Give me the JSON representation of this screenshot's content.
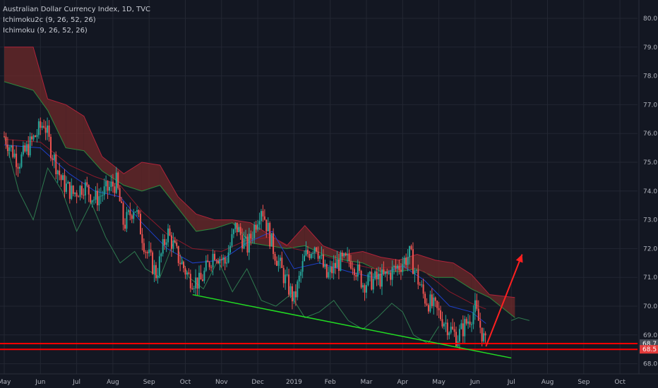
{
  "header": {
    "title": "Australian Dollar Currency Index, 1D, TVC",
    "indicator_1": "Ichimoku2c (9, 26, 52, 26)",
    "indicator_2": "Ichimoku (9, 26, 52, 26)"
  },
  "colors": {
    "background": "#131722",
    "grid": "#232733",
    "axis_text": "#b2b5be",
    "candle_up": "#26a69a",
    "candle_down": "#ef5350",
    "tenkan": "#1e40c8",
    "kijun": "#8b1a2a",
    "chikou": "#2f7a4f",
    "cloud_bear": "#6e2a2a",
    "cloud_bull": "#1f4d2a",
    "trendline": "#22dd22",
    "support": "#ff0000",
    "arrow": "#ff2020",
    "price_tag_red": "#e23b3b",
    "price_tag_dark": "#444a55"
  },
  "chart_data": {
    "type": "candlestick",
    "title": "Australian Dollar Currency Index, 1D, TVC",
    "y_ticks": [
      "80.0",
      "79.0",
      "78.0",
      "77.0",
      "76.0",
      "75.0",
      "74.0",
      "73.0",
      "72.0",
      "71.0",
      "70.0",
      "69.0",
      "68.0"
    ],
    "y_range": [
      67.6,
      80.4
    ],
    "x_ticks": [
      "May",
      "Jun",
      "Jul",
      "Aug",
      "Sep",
      "Oct",
      "Nov",
      "Dec",
      "2019",
      "Feb",
      "Mar",
      "Apr",
      "May",
      "Jun",
      "Jul",
      "Aug",
      "Sep",
      "Oct"
    ],
    "grid": true,
    "price_tags": [
      {
        "label": "68.7",
        "value": 68.7,
        "style": "dark"
      },
      {
        "label": "68.5",
        "value": 68.5,
        "style": "red"
      }
    ],
    "price_path": [
      {
        "month": 0.0,
        "price": 75.9
      },
      {
        "month": 0.4,
        "price": 75.0
      },
      {
        "month": 0.8,
        "price": 75.8
      },
      {
        "month": 1.1,
        "price": 76.4
      },
      {
        "month": 1.3,
        "price": 75.4
      },
      {
        "month": 1.6,
        "price": 74.3
      },
      {
        "month": 1.9,
        "price": 73.9
      },
      {
        "month": 2.2,
        "price": 74.2
      },
      {
        "month": 2.5,
        "price": 73.7
      },
      {
        "month": 2.8,
        "price": 74.0
      },
      {
        "month": 3.1,
        "price": 74.3
      },
      {
        "month": 3.3,
        "price": 72.8
      },
      {
        "month": 3.6,
        "price": 73.5
      },
      {
        "month": 3.9,
        "price": 72.0
      },
      {
        "month": 4.2,
        "price": 71.1
      },
      {
        "month": 4.5,
        "price": 72.6
      },
      {
        "month": 4.8,
        "price": 71.7
      },
      {
        "month": 5.1,
        "price": 71.0
      },
      {
        "month": 5.4,
        "price": 70.8
      },
      {
        "month": 5.8,
        "price": 71.9
      },
      {
        "month": 6.1,
        "price": 71.5
      },
      {
        "month": 6.4,
        "price": 72.8
      },
      {
        "month": 6.7,
        "price": 72.0
      },
      {
        "month": 7.1,
        "price": 73.5
      },
      {
        "month": 7.4,
        "price": 72.1
      },
      {
        "month": 7.7,
        "price": 71.1
      },
      {
        "month": 8.0,
        "price": 70.2
      },
      {
        "month": 8.3,
        "price": 71.7
      },
      {
        "month": 8.6,
        "price": 72.2
      },
      {
        "month": 8.9,
        "price": 71.0
      },
      {
        "month": 9.2,
        "price": 71.5
      },
      {
        "month": 9.6,
        "price": 71.6
      },
      {
        "month": 9.9,
        "price": 70.8
      },
      {
        "month": 10.2,
        "price": 70.9
      },
      {
        "month": 10.5,
        "price": 71.0
      },
      {
        "month": 10.9,
        "price": 71.4
      },
      {
        "month": 11.2,
        "price": 71.8
      },
      {
        "month": 11.4,
        "price": 71.0
      },
      {
        "month": 11.6,
        "price": 70.3
      },
      {
        "month": 11.9,
        "price": 69.9
      },
      {
        "month": 12.2,
        "price": 69.4
      },
      {
        "month": 12.5,
        "price": 68.9
      },
      {
        "month": 12.8,
        "price": 69.5
      },
      {
        "month": 13.0,
        "price": 69.9
      },
      {
        "month": 13.3,
        "price": 68.6
      }
    ],
    "tenkan": [
      {
        "month": 0.0,
        "price": 75.6
      },
      {
        "month": 1.0,
        "price": 75.5
      },
      {
        "month": 1.8,
        "price": 74.6
      },
      {
        "month": 2.5,
        "price": 74.0
      },
      {
        "month": 3.2,
        "price": 73.8
      },
      {
        "month": 3.8,
        "price": 72.9
      },
      {
        "month": 4.5,
        "price": 72.0
      },
      {
        "month": 5.2,
        "price": 71.5
      },
      {
        "month": 6.0,
        "price": 71.6
      },
      {
        "month": 6.7,
        "price": 72.2
      },
      {
        "month": 7.4,
        "price": 72.6
      },
      {
        "month": 8.0,
        "price": 71.3
      },
      {
        "month": 8.7,
        "price": 71.5
      },
      {
        "month": 9.5,
        "price": 71.2
      },
      {
        "month": 10.2,
        "price": 71.0
      },
      {
        "month": 11.0,
        "price": 71.4
      },
      {
        "month": 11.6,
        "price": 70.9
      },
      {
        "month": 12.3,
        "price": 70.0
      },
      {
        "month": 12.9,
        "price": 69.8
      },
      {
        "month": 13.3,
        "price": 69.4
      }
    ],
    "kijun": [
      {
        "month": 0.0,
        "price": 75.8
      },
      {
        "month": 1.0,
        "price": 75.7
      },
      {
        "month": 1.8,
        "price": 74.9
      },
      {
        "month": 2.5,
        "price": 74.5
      },
      {
        "month": 3.2,
        "price": 74.2
      },
      {
        "month": 3.8,
        "price": 73.3
      },
      {
        "month": 4.5,
        "price": 72.5
      },
      {
        "month": 5.2,
        "price": 72.0
      },
      {
        "month": 6.0,
        "price": 71.9
      },
      {
        "month": 6.7,
        "price": 72.3
      },
      {
        "month": 7.4,
        "price": 72.4
      },
      {
        "month": 8.0,
        "price": 72.0
      },
      {
        "month": 8.7,
        "price": 71.8
      },
      {
        "month": 9.5,
        "price": 71.5
      },
      {
        "month": 10.2,
        "price": 71.3
      },
      {
        "month": 11.0,
        "price": 71.4
      },
      {
        "month": 11.6,
        "price": 71.2
      },
      {
        "month": 12.3,
        "price": 70.5
      },
      {
        "month": 12.9,
        "price": 70.1
      },
      {
        "month": 13.3,
        "price": 69.9
      }
    ],
    "chikou": [
      {
        "month": 0.0,
        "price": 75.9
      },
      {
        "month": 0.4,
        "price": 74.0
      },
      {
        "month": 0.8,
        "price": 73.0
      },
      {
        "month": 1.2,
        "price": 74.8
      },
      {
        "month": 1.6,
        "price": 74.0
      },
      {
        "month": 2.0,
        "price": 72.6
      },
      {
        "month": 2.4,
        "price": 73.6
      },
      {
        "month": 2.8,
        "price": 72.4
      },
      {
        "month": 3.2,
        "price": 71.5
      },
      {
        "month": 3.6,
        "price": 71.9
      },
      {
        "month": 3.9,
        "price": 71.3
      },
      {
        "month": 4.3,
        "price": 71.0
      },
      {
        "month": 4.7,
        "price": 72.3
      },
      {
        "month": 5.1,
        "price": 71.0
      },
      {
        "month": 5.5,
        "price": 70.6
      },
      {
        "month": 5.9,
        "price": 71.6
      },
      {
        "month": 6.3,
        "price": 70.5
      },
      {
        "month": 6.7,
        "price": 71.3
      },
      {
        "month": 7.1,
        "price": 70.2
      },
      {
        "month": 7.5,
        "price": 70.0
      },
      {
        "month": 7.9,
        "price": 70.4
      },
      {
        "month": 8.3,
        "price": 69.6
      },
      {
        "month": 8.7,
        "price": 69.8
      },
      {
        "month": 9.1,
        "price": 70.2
      },
      {
        "month": 9.5,
        "price": 69.5
      },
      {
        "month": 9.9,
        "price": 69.2
      },
      {
        "month": 10.3,
        "price": 69.6
      },
      {
        "month": 10.7,
        "price": 70.1
      },
      {
        "month": 11.0,
        "price": 69.8
      },
      {
        "month": 11.3,
        "price": 69.0
      },
      {
        "month": 11.7,
        "price": 68.7
      },
      {
        "month": 12.0,
        "price": 69.3
      }
    ],
    "cloud": [
      {
        "month": 0.0,
        "a": 79.0,
        "b": 77.8
      },
      {
        "month": 0.8,
        "a": 79.0,
        "b": 77.5
      },
      {
        "month": 1.2,
        "a": 77.2,
        "b": 76.8
      },
      {
        "month": 1.7,
        "a": 77.0,
        "b": 75.5
      },
      {
        "month": 2.2,
        "a": 76.6,
        "b": 75.4
      },
      {
        "month": 2.7,
        "a": 75.2,
        "b": 74.7
      },
      {
        "month": 3.3,
        "a": 74.6,
        "b": 74.2
      },
      {
        "month": 3.8,
        "a": 75.0,
        "b": 74.0
      },
      {
        "month": 4.3,
        "a": 74.9,
        "b": 74.2
      },
      {
        "month": 4.8,
        "a": 73.8,
        "b": 73.4
      },
      {
        "month": 5.3,
        "a": 73.2,
        "b": 72.6
      },
      {
        "month": 5.8,
        "a": 73.0,
        "b": 72.7
      },
      {
        "month": 6.3,
        "a": 73.0,
        "b": 72.9
      },
      {
        "month": 6.8,
        "a": 72.9,
        "b": 72.2
      },
      {
        "month": 7.3,
        "a": 72.5,
        "b": 72.1
      },
      {
        "month": 7.8,
        "a": 72.1,
        "b": 72.0
      },
      {
        "month": 8.3,
        "a": 72.8,
        "b": 72.1
      },
      {
        "month": 8.8,
        "a": 72.1,
        "b": 71.8
      },
      {
        "month": 9.4,
        "a": 71.8,
        "b": 71.6
      },
      {
        "month": 9.9,
        "a": 71.9,
        "b": 71.5
      },
      {
        "month": 10.4,
        "a": 71.7,
        "b": 71.2
      },
      {
        "month": 10.9,
        "a": 71.6,
        "b": 71.2
      },
      {
        "month": 11.4,
        "a": 71.8,
        "b": 71.3
      },
      {
        "month": 11.9,
        "a": 71.6,
        "b": 71.0
      },
      {
        "month": 12.4,
        "a": 71.5,
        "b": 71.0
      },
      {
        "month": 12.9,
        "a": 71.1,
        "b": 70.6
      },
      {
        "month": 13.4,
        "a": 70.4,
        "b": 70.3
      },
      {
        "month": 14.1,
        "a": 70.3,
        "b": 69.6
      }
    ],
    "lagging_tail": [
      {
        "month": 14.0,
        "price": 69.5
      },
      {
        "month": 14.2,
        "price": 69.6
      },
      {
        "month": 14.5,
        "price": 69.5
      }
    ],
    "trendline": [
      {
        "month": 5.2,
        "price": 70.4
      },
      {
        "month": 14.0,
        "price": 68.2
      }
    ],
    "support_levels": [
      68.7,
      68.5
    ],
    "arrow": [
      {
        "month": 13.3,
        "price": 68.6
      },
      {
        "month": 14.3,
        "price": 71.8
      }
    ]
  }
}
